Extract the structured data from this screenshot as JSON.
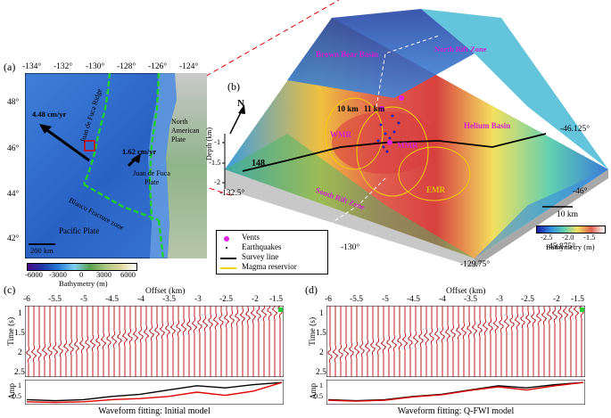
{
  "panels": {
    "a": "(a)",
    "b": "(b)",
    "c": "(c)",
    "d": "(d)"
  },
  "map_a": {
    "lon_ticks": [
      "-134°",
      "-132°",
      "-130°",
      "-128°",
      "-126°",
      "-124°"
    ],
    "lat_ticks": [
      "48°",
      "46°",
      "44°",
      "42°"
    ],
    "labels": {
      "juan_de_fuca_ridge": "Juan de Fuca Ridge",
      "north_american_plate": "North American Plate",
      "juan_de_fuca_plate": "Juan de Fuca Plate",
      "blanco": "Blanco Fracture zone",
      "pacific_plate": "Pacific Plate",
      "rate_west": "4.48 cm/yr",
      "rate_east": "1.62 cm/yr",
      "scale": "200 km"
    },
    "colorbar": {
      "title": "Bathymetry (m)",
      "ticks": [
        "-6000",
        "-3000",
        "0",
        "3000",
        "6000"
      ]
    }
  },
  "map_b": {
    "labels": {
      "brown_bear": "Brown Bear Basin",
      "north_rift": "North Rift Zone",
      "helium_basin": "Helium Basin",
      "south_rift": "South Rift Zone",
      "north": "N",
      "km10": "10 km",
      "km11": "11 km",
      "wmr": "WMR",
      "mmr": "MMR",
      "emr": "EMR",
      "line148": "148",
      "depth_label": "Depth (km)",
      "scale": "10 km"
    },
    "depth_ticks": [
      "-1",
      "-1.5",
      "-2"
    ],
    "axis_ticks": {
      "lat_right": [
        "-46.125°",
        "-46°",
        "-45.875°"
      ],
      "lon_front": [
        "-132.5°",
        "-130°",
        "-129.75°"
      ]
    },
    "colorbar": {
      "title": "Bathymetry (m)",
      "ticks": [
        "-2.5",
        "-2.0",
        "-1.5"
      ]
    },
    "legend": [
      {
        "label": "Vents",
        "symbol": "dot",
        "color": "#e020e0"
      },
      {
        "label": "Earthquakes",
        "symbol": "small-dot",
        "color": "#000000"
      },
      {
        "label": "Survey line",
        "symbol": "line",
        "color": "#000000"
      },
      {
        "label": "Magma reservior",
        "symbol": "line",
        "color": "#f0d000"
      }
    ]
  },
  "seismic": {
    "offset_label": "Offset (km)",
    "offset_ticks": [
      "-6",
      "-5.5",
      "-5",
      "-4.5",
      "-4",
      "-3.5",
      "-3",
      "-2.5",
      "-2",
      "-1.5"
    ],
    "time_label": "Time (s)",
    "time_ticks": [
      "1",
      "1.5",
      "2",
      "2.5"
    ],
    "amp_label": "Amp",
    "amp_ticks": [
      "0.5",
      "1"
    ],
    "c_title": "Waveform fitting: Initial model",
    "d_title": "Waveform fitting: Q-FWI model"
  },
  "chart_data": [
    {
      "type": "line",
      "title": "Waveform fitting: Initial model",
      "xlabel": "Offset (km)",
      "ylabel": "Amp",
      "xlim": [
        -6,
        -1.5
      ],
      "ylim": [
        0,
        1
      ],
      "x": [
        -6,
        -5.5,
        -5,
        -4.5,
        -4,
        -3.5,
        -3,
        -2.5,
        -2,
        -1.5
      ],
      "series": [
        {
          "color": "#000000",
          "values": [
            0.15,
            0.1,
            0.15,
            0.3,
            0.4,
            0.6,
            0.8,
            0.7,
            0.85,
            0.95
          ]
        },
        {
          "color": "#e00000",
          "values": [
            0.05,
            0.02,
            0.05,
            0.15,
            0.2,
            0.3,
            0.5,
            0.35,
            0.55,
            0.95
          ]
        }
      ]
    },
    {
      "type": "line",
      "title": "Waveform fitting: Q-FWI model",
      "xlabel": "Offset (km)",
      "ylabel": "Amp",
      "xlim": [
        -6,
        -1.5
      ],
      "ylim": [
        0,
        1
      ],
      "x": [
        -6,
        -5.5,
        -5,
        -4.5,
        -4,
        -3.5,
        -3,
        -2.5,
        -2,
        -1.5
      ],
      "series": [
        {
          "color": "#000000",
          "values": [
            0.15,
            0.1,
            0.15,
            0.3,
            0.4,
            0.6,
            0.8,
            0.7,
            0.85,
            0.95
          ]
        },
        {
          "color": "#e00000",
          "values": [
            0.12,
            0.08,
            0.12,
            0.28,
            0.38,
            0.58,
            0.75,
            0.6,
            0.8,
            0.95
          ]
        }
      ]
    }
  ]
}
